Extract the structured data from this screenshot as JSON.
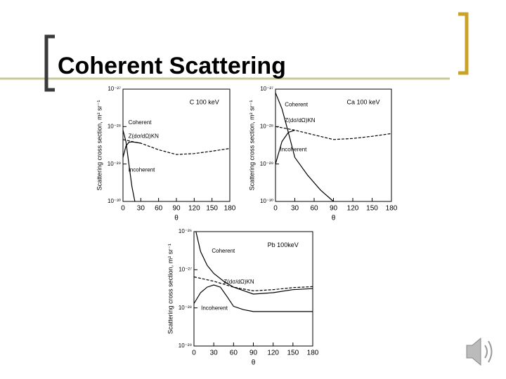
{
  "slide_title": "Coherent Scattering",
  "chart_data": [
    {
      "type": "line",
      "title": "C 100 keV",
      "x_label": "θ",
      "y_label": "Scattering cross section, m² sr⁻¹",
      "log_y": true,
      "xlim": [
        0,
        180
      ],
      "xticks": [
        0,
        30,
        60,
        90,
        120,
        150,
        180
      ],
      "ylim": [
        1e-30,
        1e-27
      ],
      "yticks": [
        {
          "value": 1e-30,
          "label": "10⁻³⁰"
        },
        {
          "value": 1e-29,
          "label": "10⁻²⁹"
        },
        {
          "value": 1e-28,
          "label": "10⁻²⁸"
        },
        {
          "value": 1e-27,
          "label": "10⁻²⁷"
        }
      ],
      "series": [
        {
          "name": "Coherent",
          "color": "#000000",
          "dash": false,
          "x": [
            0,
            5,
            10,
            15,
            20
          ],
          "values": [
            8e-29,
            4e-29,
            1e-29,
            2.5e-30,
            1e-30
          ]
        },
        {
          "name": "Z(dσ/dΩ)KN",
          "color": "#000000",
          "dash": true,
          "x": [
            0,
            15,
            30,
            60,
            90,
            120,
            150,
            180
          ],
          "values": [
            4.5e-29,
            4e-29,
            3.6e-29,
            2.4e-29,
            1.8e-29,
            1.9e-29,
            2.2e-29,
            2.6e-29
          ]
        },
        {
          "name": "Incoherent",
          "color": "#000000",
          "dash": false,
          "x": [
            0,
            5,
            10,
            15,
            20,
            30
          ],
          "values": [
            1.5e-29,
            3e-29,
            3.8e-29,
            3.9e-29,
            3.8e-29,
            3.6e-29
          ]
        }
      ]
    },
    {
      "type": "line",
      "title": "Ca 100 keV",
      "x_label": "θ",
      "y_label": "Scattering cross section, m² sr⁻¹",
      "log_y": true,
      "xlim": [
        0,
        180
      ],
      "xticks": [
        0,
        30,
        60,
        90,
        120,
        150,
        180
      ],
      "ylim": [
        1e-30,
        1e-27
      ],
      "yticks": [
        {
          "value": 1e-30,
          "label": "10⁻³⁰"
        },
        {
          "value": 1e-29,
          "label": "10⁻²⁹"
        },
        {
          "value": 1e-28,
          "label": "10⁻²⁸"
        },
        {
          "value": 1e-27,
          "label": "10⁻²⁷"
        }
      ],
      "series": [
        {
          "name": "Coherent",
          "color": "#000000",
          "dash": false,
          "x": [
            0,
            10,
            20,
            30,
            50,
            70,
            90
          ],
          "values": [
            8e-28,
            3e-28,
            7e-29,
            1.5e-29,
            5e-30,
            2e-30,
            1e-30
          ]
        },
        {
          "name": "Z(dσ/dΩ)KN",
          "color": "#000000",
          "dash": true,
          "x": [
            0,
            15,
            30,
            60,
            90,
            120,
            150,
            180
          ],
          "values": [
            1e-28,
            9e-29,
            8e-29,
            6e-29,
            4.5e-29,
            4.8e-29,
            5.5e-29,
            6.5e-29
          ]
        },
        {
          "name": "Incoherent",
          "color": "#000000",
          "dash": false,
          "x": [
            0,
            10,
            20,
            30
          ],
          "values": [
            1e-29,
            4e-29,
            7e-29,
            8e-29
          ]
        }
      ]
    },
    {
      "type": "line",
      "title": "Pb 100keV",
      "x_label": "θ",
      "y_label": "Scattering cross section, m² sr⁻¹",
      "log_y": true,
      "xlim": [
        0,
        180
      ],
      "xticks": [
        0,
        30,
        60,
        90,
        120,
        150,
        180
      ],
      "ylim": [
        1e-29,
        1e-26
      ],
      "yticks": [
        {
          "value": 1e-29,
          "label": "10⁻²⁹"
        },
        {
          "value": 1e-28,
          "label": "10⁻²⁸"
        },
        {
          "value": 1e-27,
          "label": "10⁻²⁷"
        },
        {
          "value": 1e-26,
          "label": "10⁻²⁶"
        }
      ],
      "series": [
        {
          "name": "Coherent",
          "color": "#000000",
          "dash": false,
          "x": [
            3,
            10,
            20,
            30,
            45,
            60,
            90,
            120,
            150,
            180
          ],
          "values": [
            1e-26,
            3e-27,
            1.3e-27,
            8e-28,
            5e-28,
            3.5e-28,
            2.3e-28,
            2.5e-28,
            3e-28,
            3.2e-28
          ]
        },
        {
          "name": "Z(dσ/dΩ)KN",
          "color": "#000000",
          "dash": true,
          "x": [
            0,
            30,
            60,
            90,
            120,
            150,
            180
          ],
          "values": [
            6.5e-28,
            5e-28,
            3.5e-28,
            2.8e-28,
            3e-28,
            3.4e-28,
            3.6e-28
          ]
        },
        {
          "name": "Incoherent",
          "color": "#000000",
          "dash": false,
          "x": [
            0,
            10,
            20,
            30,
            40,
            50,
            60,
            75,
            90,
            120,
            150,
            180
          ],
          "values": [
            1.3e-28,
            2.5e-28,
            3.5e-28,
            4e-28,
            3.5e-28,
            2e-28,
            1.1e-28,
            9e-29,
            8e-29,
            8e-29,
            8e-29,
            8e-29
          ]
        }
      ]
    }
  ]
}
